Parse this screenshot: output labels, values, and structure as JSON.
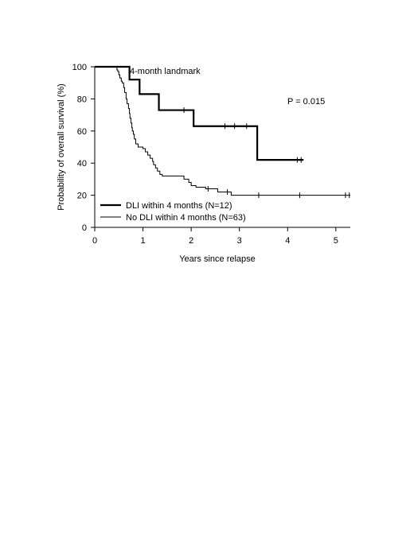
{
  "chart_data": {
    "type": "line",
    "step": true,
    "title": "",
    "xlabel": "Years since relapse",
    "ylabel": "Probability of overall survival (%)",
    "xlim": [
      0,
      5.3
    ],
    "ylim": [
      0,
      100
    ],
    "xticks": [
      0,
      1,
      2,
      3,
      4,
      5
    ],
    "yticks": [
      0,
      20,
      40,
      60,
      80,
      100
    ],
    "grid": false,
    "legend_position": "bottom-left",
    "annotations": {
      "landmark": "4-month landmark",
      "pvalue": "P = 0.015"
    },
    "series": [
      {
        "name": "DLI within 4 months (N=12)",
        "weight": "thick",
        "steps": [
          [
            0,
            100
          ],
          [
            0.72,
            92
          ],
          [
            0.93,
            83
          ],
          [
            1.33,
            73
          ],
          [
            2.05,
            63
          ],
          [
            3.37,
            42
          ],
          [
            4.33,
            42
          ]
        ],
        "censored": [
          [
            1.85,
            73
          ],
          [
            2.7,
            63
          ],
          [
            2.9,
            63
          ],
          [
            3.15,
            63
          ],
          [
            4.2,
            42
          ],
          [
            4.28,
            42
          ]
        ]
      },
      {
        "name": "No DLI within 4 months (N=63)",
        "weight": "thin",
        "steps": [
          [
            0,
            100
          ],
          [
            0.46,
            98
          ],
          [
            0.48,
            97
          ],
          [
            0.5,
            95
          ],
          [
            0.52,
            93
          ],
          [
            0.55,
            91
          ],
          [
            0.57,
            90
          ],
          [
            0.6,
            87
          ],
          [
            0.62,
            84
          ],
          [
            0.65,
            80
          ],
          [
            0.67,
            77
          ],
          [
            0.7,
            74
          ],
          [
            0.72,
            71
          ],
          [
            0.73,
            68
          ],
          [
            0.75,
            65
          ],
          [
            0.77,
            62
          ],
          [
            0.78,
            60
          ],
          [
            0.8,
            58
          ],
          [
            0.82,
            55
          ],
          [
            0.85,
            52
          ],
          [
            0.9,
            50
          ],
          [
            1.0,
            49
          ],
          [
            1.05,
            47
          ],
          [
            1.1,
            45
          ],
          [
            1.15,
            43
          ],
          [
            1.2,
            41
          ],
          [
            1.22,
            39
          ],
          [
            1.26,
            37
          ],
          [
            1.3,
            35
          ],
          [
            1.35,
            33
          ],
          [
            1.4,
            32
          ],
          [
            1.85,
            30
          ],
          [
            1.95,
            28
          ],
          [
            2.0,
            26
          ],
          [
            2.1,
            25
          ],
          [
            2.3,
            24
          ],
          [
            2.55,
            22
          ],
          [
            2.83,
            20
          ],
          [
            5.3,
            20
          ]
        ],
        "censored": [
          [
            2.35,
            24
          ],
          [
            2.75,
            22
          ],
          [
            3.4,
            20
          ],
          [
            4.25,
            20
          ],
          [
            5.2,
            20
          ],
          [
            5.28,
            20
          ]
        ]
      }
    ]
  }
}
